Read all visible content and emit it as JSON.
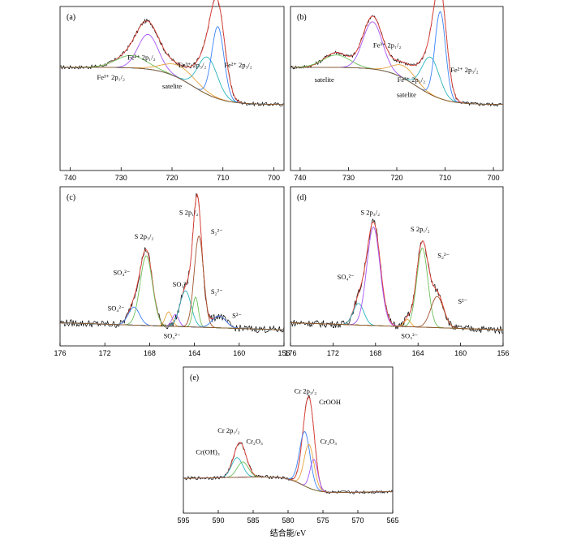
{
  "chart_data": [
    {
      "type": "line",
      "panel": "(a)",
      "xlim": [
        742,
        698
      ],
      "x_ticks": [
        "740",
        "730",
        "720",
        "710",
        "700"
      ],
      "annotations": [
        {
          "text": "Fe²⁺ 2p₁/₂",
          "x": 726,
          "y": 0.78
        },
        {
          "text": "Fe³⁺ 2p₁/₂",
          "x": 732,
          "y": 0.62
        },
        {
          "text": "Fe³⁺ 2p₃/₂",
          "x": 716,
          "y": 0.72
        },
        {
          "text": "Fe²⁺ 2p₃/₂",
          "x": 707,
          "y": 0.72
        },
        {
          "text": "satelite",
          "x": 720,
          "y": 0.55
        }
      ],
      "series": [
        {
          "role": "raw",
          "color": "#000000",
          "peaks": [
            [
              724.7,
              0.32,
              2.2
            ],
            [
              711,
              0.62,
              1.4
            ],
            [
              713,
              0.28,
              2.0
            ],
            [
              718.5,
              0.1,
              3.0
            ],
            [
              728,
              0.1,
              3.0
            ]
          ]
        },
        {
          "role": "envelope",
          "color": "#e8453c",
          "peaks": [
            [
              724.7,
              0.32,
              2.2
            ],
            [
              711,
              0.62,
              1.4
            ],
            [
              713,
              0.28,
              2.0
            ],
            [
              718.5,
              0.1,
              3.0
            ],
            [
              728,
              0.1,
              3.0
            ]
          ]
        },
        {
          "role": "component",
          "color": "#a855f7",
          "peaks": [
            [
              724.7,
              0.28,
              2.0
            ]
          ]
        },
        {
          "role": "component",
          "color": "#6bbf59",
          "peaks": [
            [
              728,
              0.1,
              3.0
            ]
          ]
        },
        {
          "role": "component",
          "color": "#e8a23c",
          "peaks": [
            [
              718.5,
              0.1,
              3.2
            ]
          ]
        },
        {
          "role": "component",
          "color": "#2bb3c0",
          "peaks": [
            [
              713,
              0.3,
              1.9
            ]
          ]
        },
        {
          "role": "component",
          "color": "#3b82f6",
          "peaks": [
            [
              711,
              0.58,
              1.2
            ]
          ]
        },
        {
          "role": "background",
          "color": "#8b5a2b",
          "peaks": []
        }
      ]
    },
    {
      "type": "line",
      "panel": "(b)",
      "xlim": [
        742,
        698
      ],
      "x_ticks": [
        "740",
        "730",
        "720",
        "710",
        "700"
      ],
      "annotations": [
        {
          "text": "Fe³⁺ 2p₁/₂",
          "x": 722,
          "y": 0.88
        },
        {
          "text": "satelite",
          "x": 735,
          "y": 0.6
        },
        {
          "text": "Fe³⁺ 2p₃/₂",
          "x": 717,
          "y": 0.6
        },
        {
          "text": "satelite",
          "x": 718,
          "y": 0.48
        },
        {
          "text": "Fe²⁺ 2p₃/₂",
          "x": 706,
          "y": 0.68
        }
      ],
      "series": [
        {
          "role": "raw",
          "color": "#000000",
          "peaks": [
            [
              725,
              0.42,
              2.0
            ],
            [
              711,
              0.72,
              1.3
            ],
            [
              713,
              0.3,
              2.0
            ],
            [
              718.5,
              0.12,
              2.5
            ],
            [
              732.5,
              0.12,
              2.5
            ]
          ]
        },
        {
          "role": "envelope",
          "color": "#e8453c",
          "peaks": [
            [
              725,
              0.42,
              2.0
            ],
            [
              711,
              0.72,
              1.3
            ],
            [
              713,
              0.3,
              2.0
            ],
            [
              718.5,
              0.12,
              2.5
            ],
            [
              732.5,
              0.12,
              2.5
            ]
          ]
        },
        {
          "role": "component",
          "color": "#a855f7",
          "peaks": [
            [
              725,
              0.38,
              2.0
            ]
          ]
        },
        {
          "role": "component",
          "color": "#6bbf59",
          "peaks": [
            [
              732.5,
              0.1,
              2.8
            ]
          ]
        },
        {
          "role": "component",
          "color": "#e8a23c",
          "peaks": [
            [
              718.5,
              0.1,
              2.4
            ]
          ]
        },
        {
          "role": "component",
          "color": "#2bb3c0",
          "peaks": [
            [
              713,
              0.3,
              1.8
            ]
          ]
        },
        {
          "role": "component",
          "color": "#3b82f6",
          "peaks": [
            [
              711,
              0.7,
              1.1
            ]
          ]
        },
        {
          "role": "background",
          "color": "#8b5a2b",
          "peaks": []
        }
      ]
    },
    {
      "type": "line",
      "panel": "(c)",
      "xlim": [
        176,
        156
      ],
      "x_ticks": [
        "176",
        "172",
        "168",
        "164",
        "160",
        "156"
      ],
      "annotations": [
        {
          "text": "S 2p₁/₂",
          "x": 164.5,
          "y": 0.98
        },
        {
          "text": "S 2p₃/₂",
          "x": 168.5,
          "y": 0.78
        },
        {
          "text": "SO₄²⁻",
          "x": 170.5,
          "y": 0.48
        },
        {
          "text": "SO₃²⁻",
          "x": 165.2,
          "y": 0.38
        },
        {
          "text": "S₂²⁻",
          "x": 162,
          "y": 0.82
        },
        {
          "text": "S₂²⁻",
          "x": 162,
          "y": 0.32
        },
        {
          "text": "SO₄²⁻",
          "x": 171,
          "y": 0.18
        },
        {
          "text": "S²⁻",
          "x": 160.2,
          "y": 0.12
        },
        {
          "text": "SO₃²⁻",
          "x": 166,
          "y": -0.05
        }
      ],
      "series": [
        {
          "role": "raw",
          "color": "#000000",
          "peaks": [
            [
              168.3,
              0.62,
              0.55
            ],
            [
              163.7,
              0.8,
              0.45
            ],
            [
              164.8,
              0.3,
              0.5
            ],
            [
              169.4,
              0.15,
              0.5
            ],
            [
              163.8,
              0.28,
              0.3
            ],
            [
              161.8,
              0.1,
              0.6
            ]
          ]
        },
        {
          "role": "envelope",
          "color": "#e8453c",
          "peaks": [
            [
              168.3,
              0.62,
              0.55
            ],
            [
              163.7,
              0.8,
              0.45
            ],
            [
              164.8,
              0.3,
              0.5
            ],
            [
              169.4,
              0.15,
              0.5
            ],
            [
              163.8,
              0.28,
              0.3
            ],
            [
              161.8,
              0.1,
              0.6
            ]
          ]
        },
        {
          "role": "component",
          "color": "#3b82f6",
          "peaks": [
            [
              169.4,
              0.15,
              0.5
            ]
          ]
        },
        {
          "role": "component",
          "color": "#6bbf59",
          "peaks": [
            [
              168.3,
              0.58,
              0.55
            ]
          ]
        },
        {
          "role": "component",
          "color": "#e8a23c",
          "peaks": [
            [
              166.3,
              0.12,
              0.3
            ]
          ]
        },
        {
          "role": "component",
          "color": "#a855f7",
          "peaks": [
            [
              165.7,
              0.1,
              0.3
            ]
          ]
        },
        {
          "role": "component",
          "color": "#2bb3c0",
          "peaks": [
            [
              164.8,
              0.3,
              0.5
            ]
          ]
        },
        {
          "role": "component",
          "color": "#a0522d",
          "peaks": [
            [
              163.6,
              0.76,
              0.42
            ]
          ]
        },
        {
          "role": "component",
          "color": "#6bbf59",
          "peaks": [
            [
              163.9,
              0.25,
              0.25
            ]
          ]
        },
        {
          "role": "component",
          "color": "#3b82f6",
          "peaks": [
            [
              161.8,
              0.1,
              0.6
            ]
          ]
        },
        {
          "role": "background",
          "color": "#8b5a2b",
          "peaks": []
        }
      ]
    },
    {
      "type": "line",
      "panel": "(d)",
      "xlim": [
        176,
        156
      ],
      "x_ticks": [
        "176",
        "172",
        "168",
        "164",
        "160",
        "156"
      ],
      "annotations": [
        {
          "text": "S 2p₃/₂",
          "x": 168.5,
          "y": 0.98
        },
        {
          "text": "S 2p₁/₂",
          "x": 163.8,
          "y": 0.84
        },
        {
          "text": "SO₄²⁻",
          "x": 170.8,
          "y": 0.44
        },
        {
          "text": "S₂²⁻",
          "x": 161.6,
          "y": 0.62
        },
        {
          "text": "S²⁻",
          "x": 159.8,
          "y": 0.24
        },
        {
          "text": "SO₃²⁻",
          "x": 164.8,
          "y": -0.05
        }
      ],
      "series": [
        {
          "role": "raw",
          "color": "#000000",
          "peaks": [
            [
              168.2,
              0.86,
              0.65
            ],
            [
              163.6,
              0.7,
              0.55
            ],
            [
              169.6,
              0.18,
              0.5
            ],
            [
              162.2,
              0.28,
              0.6
            ],
            [
              165.0,
              0.06,
              0.3
            ]
          ]
        },
        {
          "role": "envelope",
          "color": "#e8453c",
          "peaks": [
            [
              168.2,
              0.86,
              0.65
            ],
            [
              163.6,
              0.7,
              0.55
            ],
            [
              169.6,
              0.18,
              0.5
            ],
            [
              162.2,
              0.28,
              0.6
            ],
            [
              165.0,
              0.06,
              0.3
            ]
          ]
        },
        {
          "role": "component",
          "color": "#2bb3c0",
          "peaks": [
            [
              169.6,
              0.18,
              0.5
            ]
          ]
        },
        {
          "role": "component",
          "color": "#a855f7",
          "peaks": [
            [
              168.2,
              0.82,
              0.62
            ]
          ]
        },
        {
          "role": "component",
          "color": "#e8a23c",
          "peaks": [
            [
              165.0,
              0.06,
              0.3
            ]
          ]
        },
        {
          "role": "component",
          "color": "#6bbf59",
          "peaks": [
            [
              163.6,
              0.66,
              0.52
            ]
          ]
        },
        {
          "role": "component",
          "color": "#a0522d",
          "peaks": [
            [
              162.2,
              0.26,
              0.6
            ]
          ]
        },
        {
          "role": "background",
          "color": "#8b5a2b",
          "peaks": []
        }
      ]
    },
    {
      "type": "line",
      "panel": "(e)",
      "xlim": [
        595,
        565
      ],
      "x_ticks": [
        "595",
        "590",
        "585",
        "580",
        "575",
        "570",
        "565"
      ],
      "xlabel": "结合能/eV",
      "annotations": [
        {
          "text": "Cr 2p₃/₂",
          "x": 577.5,
          "y": 0.98
        },
        {
          "text": "CrOOH",
          "x": 574,
          "y": 0.88
        },
        {
          "text": "Cr 2p₁/₂",
          "x": 588.5,
          "y": 0.62
        },
        {
          "text": "Cr₂O₃",
          "x": 584.8,
          "y": 0.52
        },
        {
          "text": "Cr(OH)₃",
          "x": 591.5,
          "y": 0.42
        },
        {
          "text": "Cr₂O₃",
          "x": 574.2,
          "y": 0.52
        }
      ],
      "series": [
        {
          "role": "raw",
          "color": "#000000",
          "peaks": [
            [
              586.9,
              0.32,
              0.9
            ],
            [
              577.2,
              0.72,
              0.75
            ],
            [
              576.5,
              0.2,
              0.6
            ]
          ]
        },
        {
          "role": "envelope",
          "color": "#e8453c",
          "peaks": [
            [
              586.9,
              0.32,
              0.9
            ],
            [
              577.2,
              0.72,
              0.75
            ],
            [
              576.5,
              0.2,
              0.6
            ]
          ]
        },
        {
          "role": "component",
          "color": "#2bb3c0",
          "peaks": [
            [
              587.3,
              0.18,
              0.8
            ]
          ]
        },
        {
          "role": "component",
          "color": "#6bbf59",
          "peaks": [
            [
              586.5,
              0.14,
              0.8
            ]
          ]
        },
        {
          "role": "component",
          "color": "#3b82f6",
          "peaks": [
            [
              577.6,
              0.5,
              0.75
            ]
          ]
        },
        {
          "role": "component",
          "color": "#e8a23c",
          "peaks": [
            [
              577.0,
              0.4,
              0.7
            ]
          ]
        },
        {
          "role": "component",
          "color": "#a855f7",
          "peaks": [
            [
              576.3,
              0.28,
              0.55
            ]
          ]
        },
        {
          "role": "background",
          "color": "#8b5a2b",
          "peaks": []
        }
      ]
    }
  ]
}
